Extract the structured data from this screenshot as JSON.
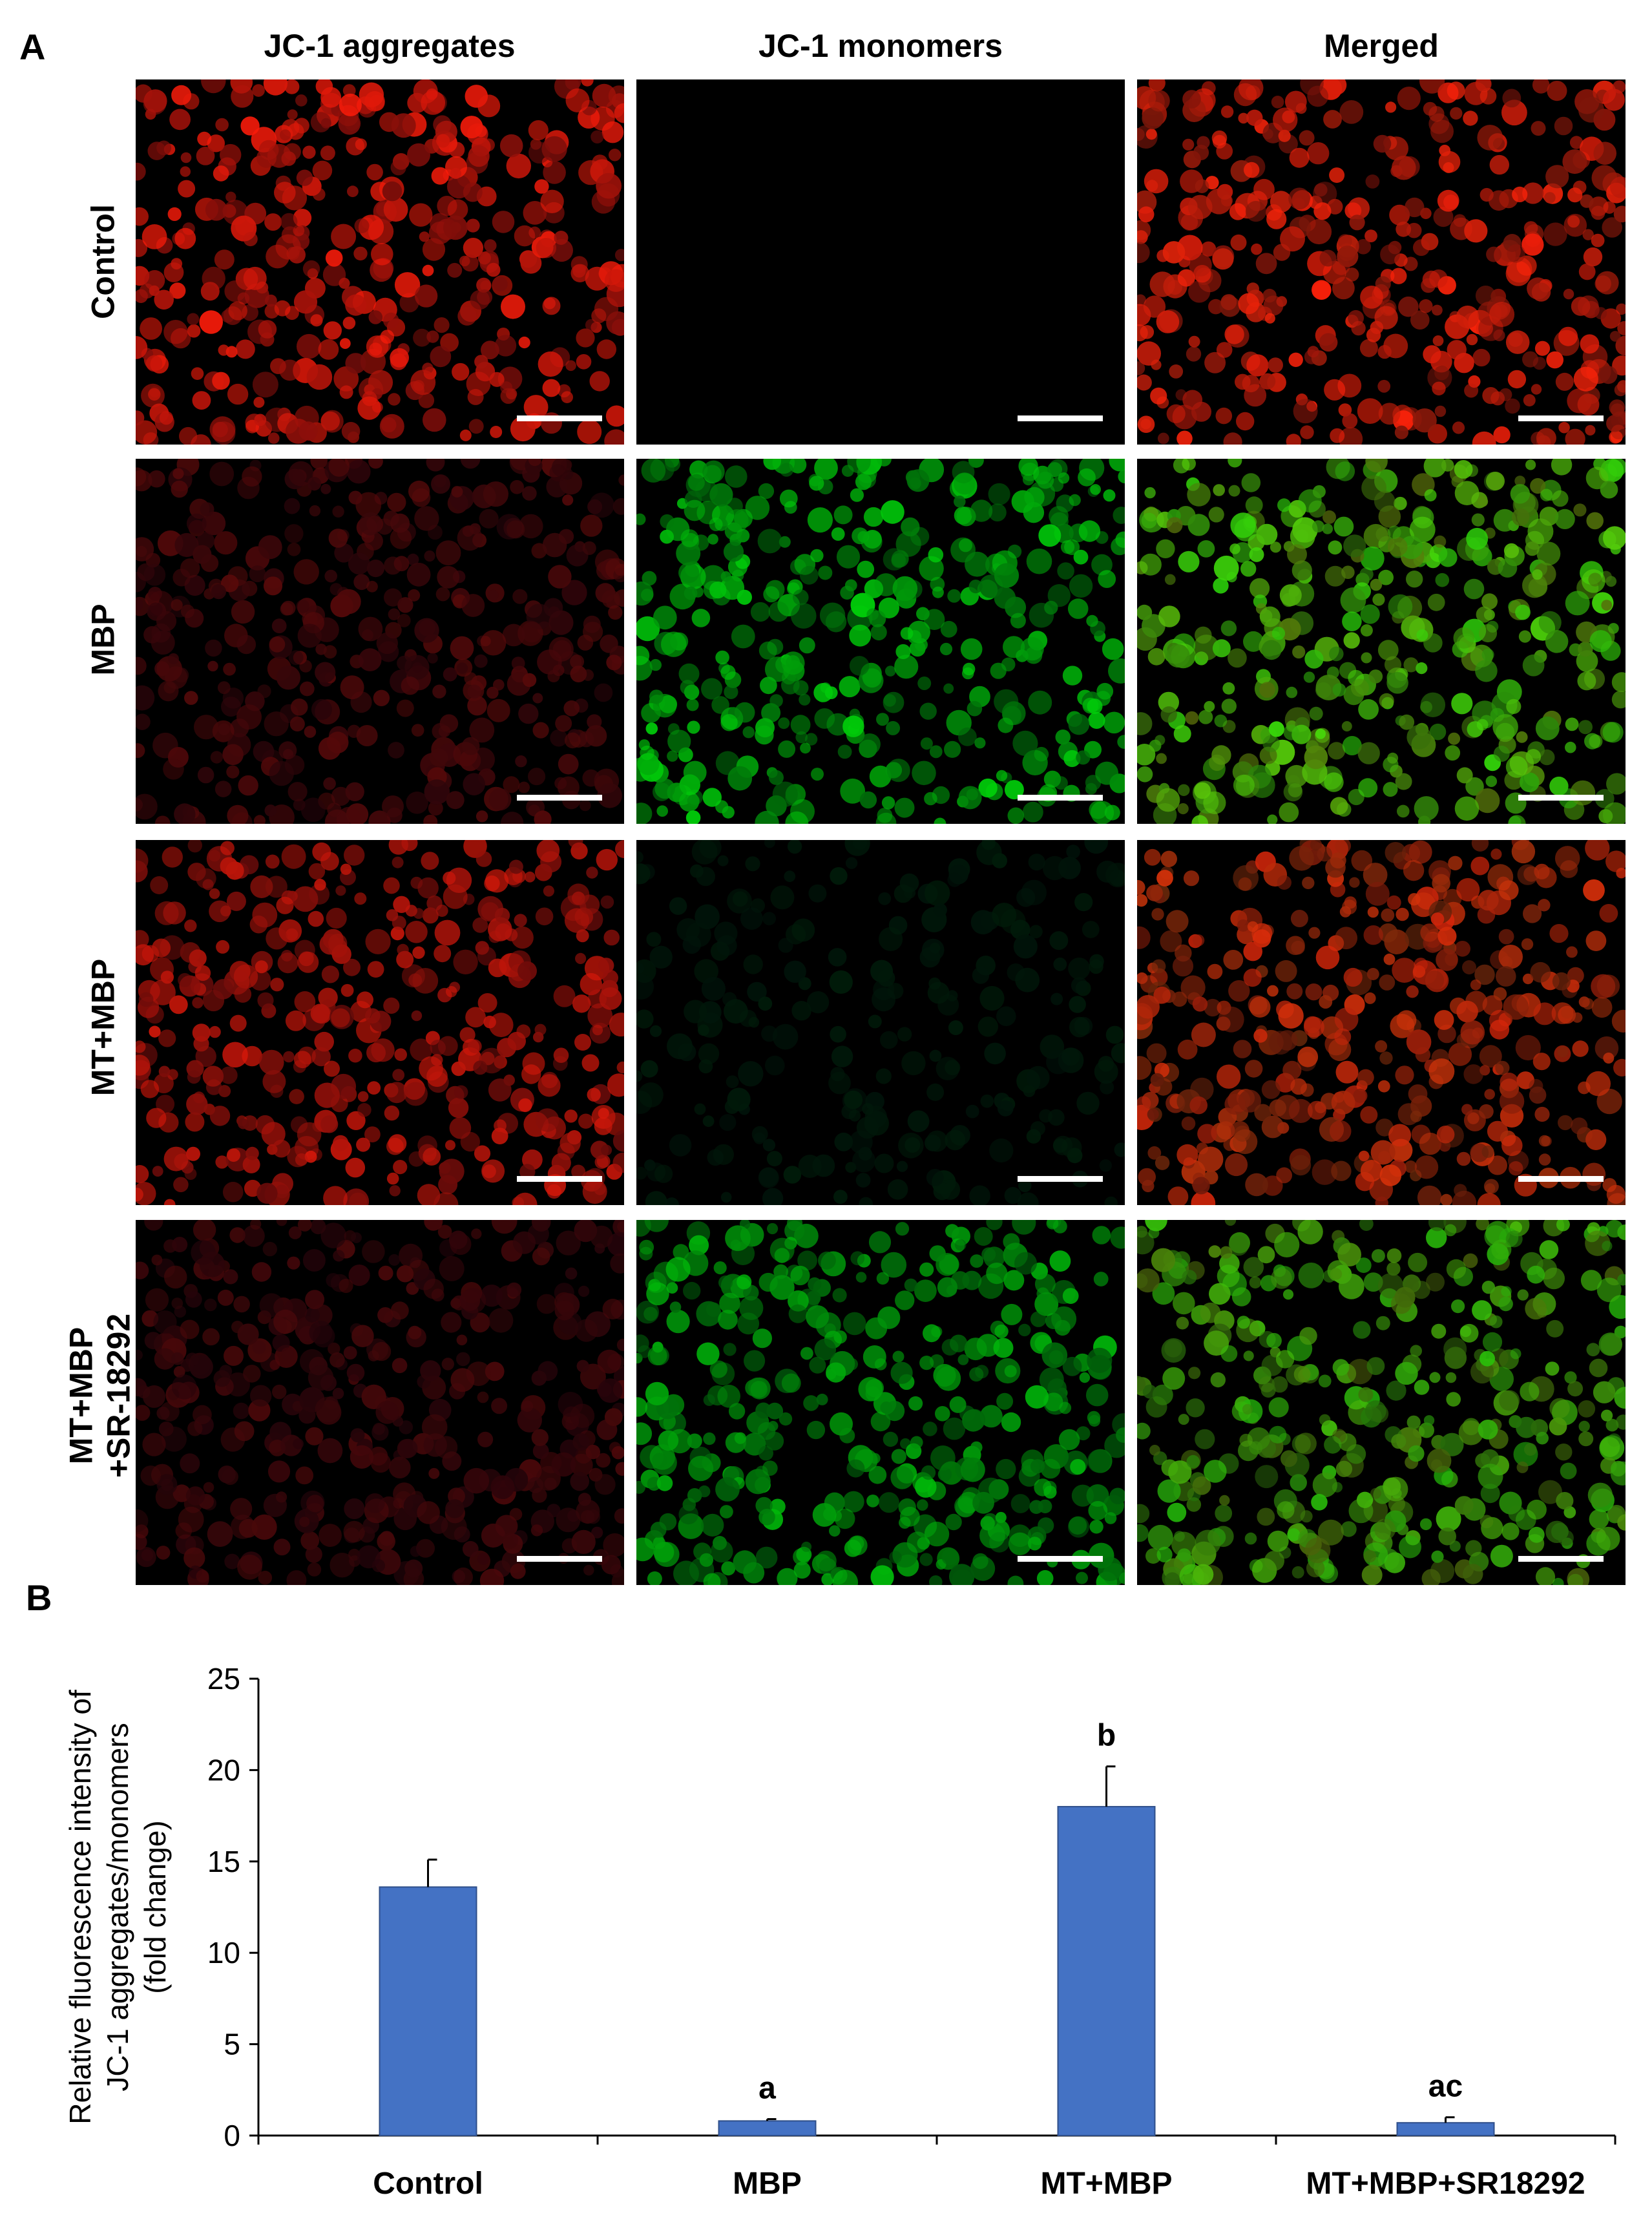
{
  "panel_a_label": "A",
  "panel_b_label": "B",
  "column_headers": [
    "JC-1 aggregates",
    "JC-1 monomers",
    "Merged"
  ],
  "row_labels": [
    "Control",
    "MBP",
    "MT+MBP",
    "MT+MBP\n+SR-18292"
  ],
  "colors": {
    "bar_fill": "#4472c4",
    "aggregate_red": "#ff2a0a",
    "monomer_green": "#22d21e"
  },
  "chart_data": {
    "type": "bar",
    "categories": [
      "Control",
      "MBP",
      "MT+MBP",
      "MT+MBP+SR18292"
    ],
    "values": [
      13.6,
      0.8,
      18.0,
      0.7
    ],
    "error": [
      1.5,
      0.1,
      2.2,
      0.3
    ],
    "significance": [
      "",
      "a",
      "b",
      "ac"
    ],
    "ylabel": "Relative fluorescence intensity of\nJC-1 aggregates/monomers\n(fold change)",
    "ylim": [
      0,
      25
    ],
    "yticks": [
      0,
      5,
      10,
      15,
      20,
      25
    ],
    "grid": false
  }
}
